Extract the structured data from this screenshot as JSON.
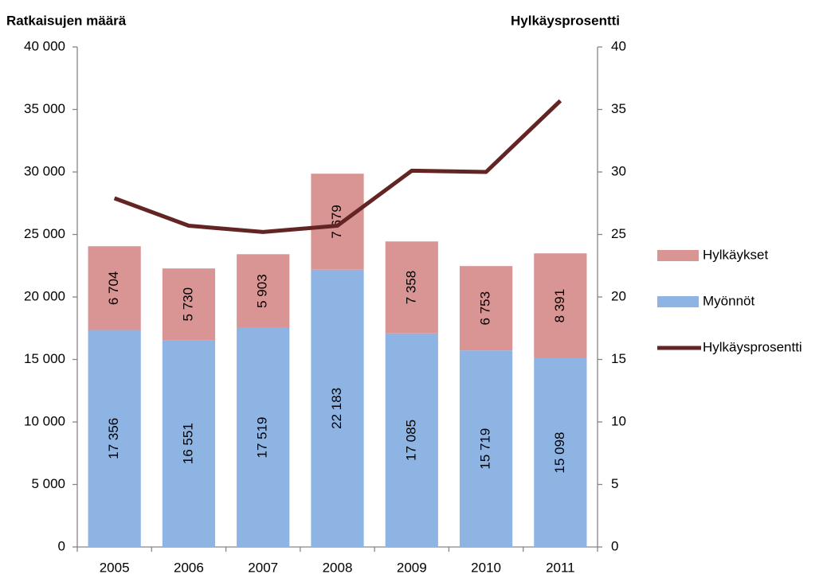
{
  "chart_data": {
    "type": "bar",
    "stacked": true,
    "y_label": "Ratkaisujen määrä",
    "y2_label": "Hylkäysprosentti",
    "categories": [
      "2005",
      "2006",
      "2007",
      "2008",
      "2009",
      "2010",
      "2011"
    ],
    "series": [
      {
        "name": "Myönnöt",
        "color": "#8eb4e3",
        "values": [
          17356,
          16551,
          17519,
          22183,
          17085,
          15719,
          15098
        ],
        "value_labels": [
          "17 356",
          "16 551",
          "17 519",
          "22 183",
          "17 085",
          "15 719",
          "15 098"
        ]
      },
      {
        "name": "Hylkäykset",
        "color": "#d99594",
        "values": [
          6704,
          5730,
          5903,
          7679,
          7358,
          6753,
          8391
        ],
        "value_labels": [
          "6 704",
          "5 730",
          "5 903",
          "7 679",
          "7 358",
          "6 753",
          "8 391"
        ]
      },
      {
        "name": "Hylkäysprosentti",
        "color": "#632523",
        "axis": "y2",
        "values": [
          27.9,
          25.7,
          25.2,
          25.7,
          30.1,
          30.0,
          35.7
        ]
      }
    ],
    "ylim": [
      0,
      40000
    ],
    "yticks": [
      0,
      {
        "value": 5000,
        "label": "5 000"
      },
      {
        "value": 10000,
        "label": "10 000"
      },
      {
        "value": 15000,
        "label": "15 000"
      },
      {
        "value": 20000,
        "label": "20 000"
      },
      {
        "value": 25000,
        "label": "25 000"
      },
      {
        "value": 30000,
        "label": "30 000"
      },
      {
        "value": 35000,
        "label": "35 000"
      },
      {
        "value": 40000,
        "label": "40 000"
      }
    ],
    "y2lim": [
      0,
      40
    ],
    "y2ticks": [
      0,
      5,
      10,
      15,
      20,
      25,
      30,
      35,
      40
    ],
    "grid": false,
    "legend": "right"
  }
}
